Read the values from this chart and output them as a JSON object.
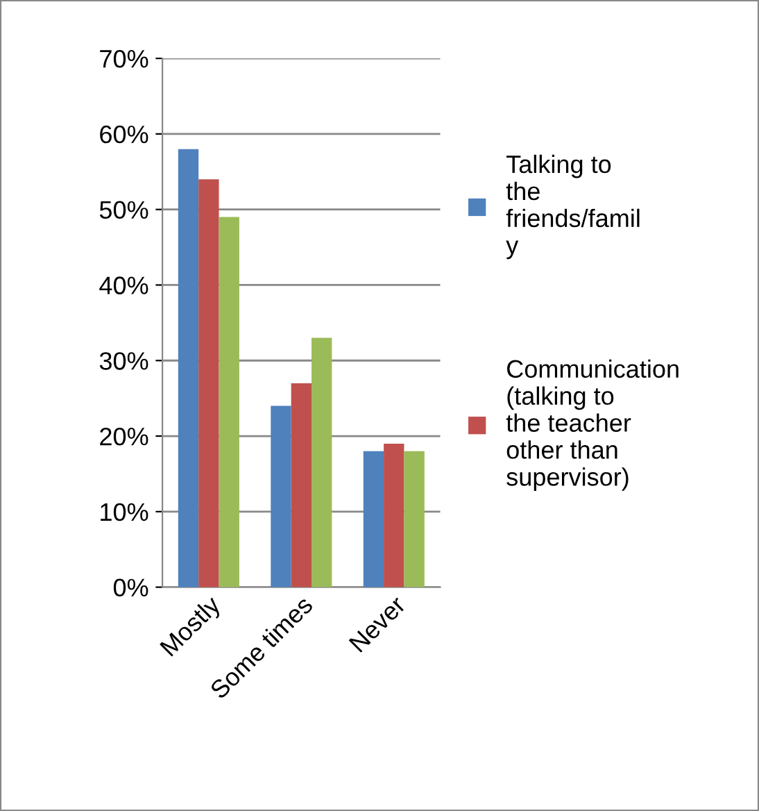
{
  "chart_data": {
    "type": "bar",
    "categories": [
      "Mostly",
      "Some times",
      "Never"
    ],
    "series": [
      {
        "name": "Talking to the friends/family",
        "color": "#4f81bd",
        "values": [
          58,
          24,
          18
        ]
      },
      {
        "name": "Communication (talking to the teacher other than supervisor)",
        "color": "#c0504d",
        "values": [
          54,
          27,
          19
        ]
      },
      {
        "color": "#9bbb59",
        "values": [
          49,
          33,
          18
        ]
      }
    ],
    "ylim": [
      0,
      70
    ],
    "yticks": [
      {
        "value": 0,
        "label": "0%"
      },
      {
        "value": 10,
        "label": "10%"
      },
      {
        "value": 20,
        "label": "20%"
      },
      {
        "value": 30,
        "label": "30%"
      },
      {
        "value": 40,
        "label": "40%"
      },
      {
        "value": 50,
        "label": "50%"
      },
      {
        "value": 60,
        "label": "60%"
      },
      {
        "value": 70,
        "label": "70%"
      }
    ],
    "grid": "y",
    "legend": "right"
  }
}
